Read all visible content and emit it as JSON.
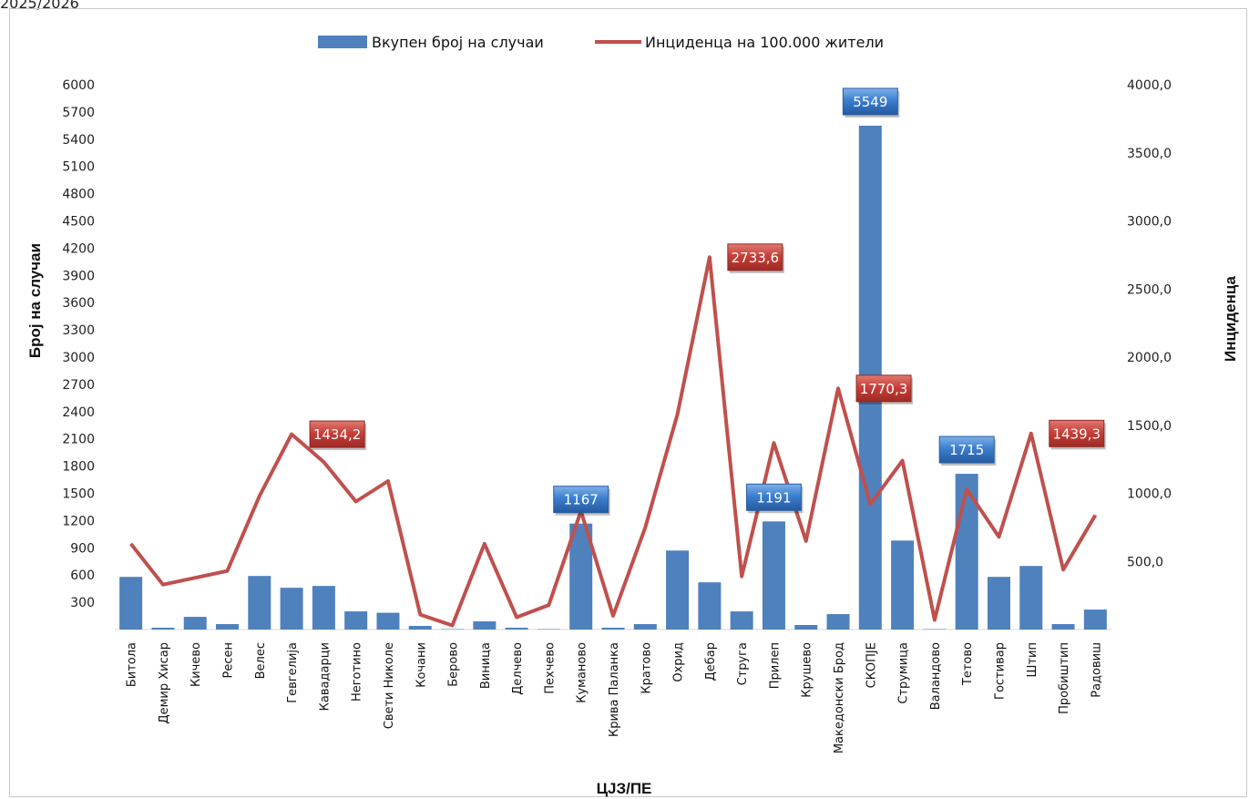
{
  "page": {
    "caption": "2025/2026"
  },
  "chart_data": {
    "type": "bar+line",
    "legend": [
      "Вкупен број на случаи",
      "Инциденца на 100.000 жители"
    ],
    "xlabel": "ЦЈЗ/ПЕ",
    "ylabel": "Број на случаи",
    "y2label": "Инциденца",
    "ylim": [
      0,
      6000
    ],
    "y2lim": [
      0,
      4000
    ],
    "yticks": [
      "300",
      "600",
      "900",
      "1200",
      "1500",
      "1800",
      "2100",
      "2400",
      "2700",
      "3000",
      "3300",
      "3600",
      "3900",
      "4200",
      "4500",
      "4800",
      "5100",
      "5400",
      "5700",
      "6000"
    ],
    "y2ticks": [
      "500,0",
      "1000,0",
      "1500,0",
      "2000,0",
      "2500,0",
      "3000,0",
      "3500,0",
      "4000,0"
    ],
    "categories": [
      "Битола",
      "Демир Хисар",
      "Кичево",
      "Ресен",
      "Велес",
      "Гевгелија",
      "Кавадарци",
      "Неготино",
      "Свети Николе",
      "Кочани",
      "Берово",
      "Виница",
      "Делчево",
      "Пехчево",
      "Куманово",
      "Крива Паланка",
      "Кратово",
      "Охрид",
      "Дебар",
      "Струга",
      "Прилеп",
      "Крушево",
      "Македонски Брод",
      "СКОПЈЕ",
      "Струмица",
      "Валандово",
      "Тетово",
      "Гостивар",
      "Штип",
      "Пробиштип",
      "Радовиш"
    ],
    "series": [
      {
        "name": "Вкупен број на случаи",
        "axis": "left",
        "type": "bar",
        "color": "#4F81BD",
        "values": [
          580,
          20,
          140,
          60,
          590,
          460,
          480,
          200,
          185,
          40,
          5,
          90,
          20,
          5,
          1167,
          20,
          60,
          870,
          520,
          200,
          1191,
          50,
          170,
          5549,
          980,
          5,
          1715,
          580,
          700,
          60,
          220
        ]
      },
      {
        "name": "Инциденца на 100.000 жители",
        "axis": "right",
        "type": "line",
        "color": "#C0504D",
        "values": [
          630,
          330,
          380,
          430,
          980,
          1434.2,
          1230,
          940,
          1090,
          110,
          30,
          630,
          90,
          180,
          870,
          100,
          750,
          1580,
          2733.6,
          390,
          1370,
          650,
          1770.3,
          920,
          1240,
          70,
          1030,
          680,
          1439.3,
          440,
          840
        ]
      }
    ],
    "data_labels": [
      {
        "series": 0,
        "category": "Куманово",
        "text": "1167"
      },
      {
        "series": 0,
        "category": "Прилеп",
        "text": "1191"
      },
      {
        "series": 0,
        "category": "СКОПЈЕ",
        "text": "5549"
      },
      {
        "series": 0,
        "category": "Тетово",
        "text": "1715"
      },
      {
        "series": 1,
        "category": "Гевгелија",
        "text": "1434,2"
      },
      {
        "series": 1,
        "category": "Дебар",
        "text": "2733,6"
      },
      {
        "series": 1,
        "category": "Македонски Брод",
        "text": "1770,3"
      },
      {
        "series": 1,
        "category": "Штип",
        "text": "1439,3"
      }
    ],
    "grid": false,
    "legend_position": "top"
  }
}
